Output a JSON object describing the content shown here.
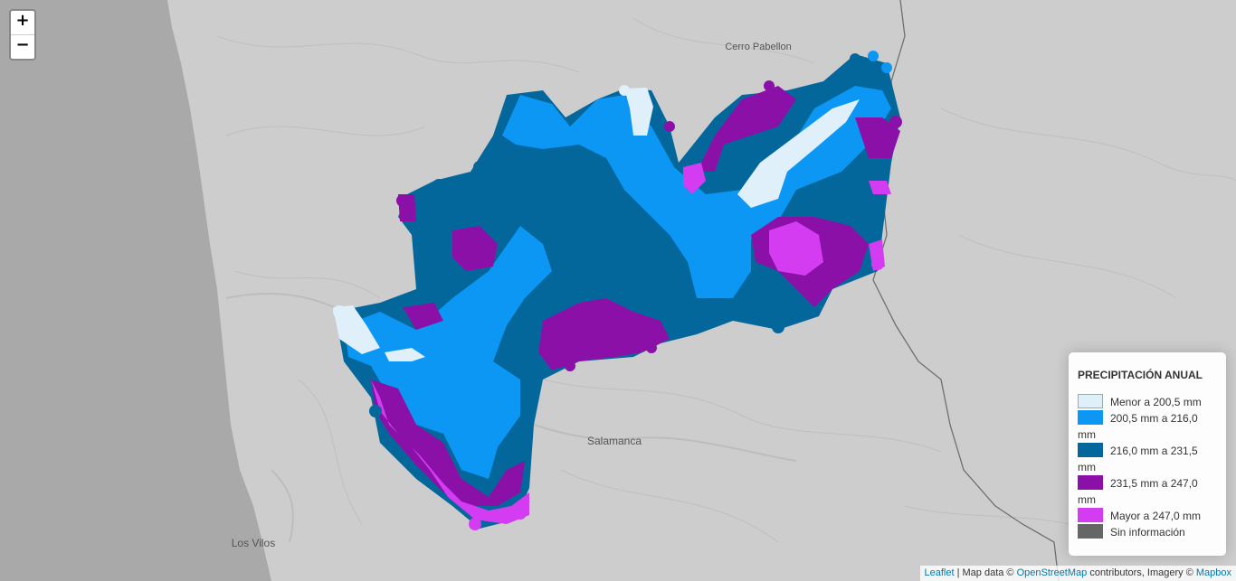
{
  "map": {
    "places": [
      {
        "name": "Cerro Pabellon"
      },
      {
        "name": "Salamanca"
      },
      {
        "name": "Los Vilos"
      }
    ]
  },
  "zoom": {
    "in_label": "+",
    "out_label": "−"
  },
  "legend": {
    "title": "PRECIPITACIÓN ANUAL",
    "items": [
      {
        "label": "Menor a 200,5 mm",
        "color": "#dff0fb",
        "border": "#9aa"
      },
      {
        "label": "200,5 mm a 216,0 mm",
        "color": "#0b97f3"
      },
      {
        "label": "216,0 mm a 231,5 mm",
        "color": "#04679c"
      },
      {
        "label": "231,5 mm a 247,0 mm",
        "color": "#8a10a8"
      },
      {
        "label": "Mayor a 247,0 mm",
        "color": "#d33cf0"
      },
      {
        "label": "Sin información",
        "color": "#666666"
      }
    ]
  },
  "attribution": {
    "leaflet": "Leaflet",
    "sep": " | Map data © ",
    "osm": "OpenStreetMap",
    "mid": " contributors, Imagery © ",
    "mapbox": "Mapbox"
  }
}
